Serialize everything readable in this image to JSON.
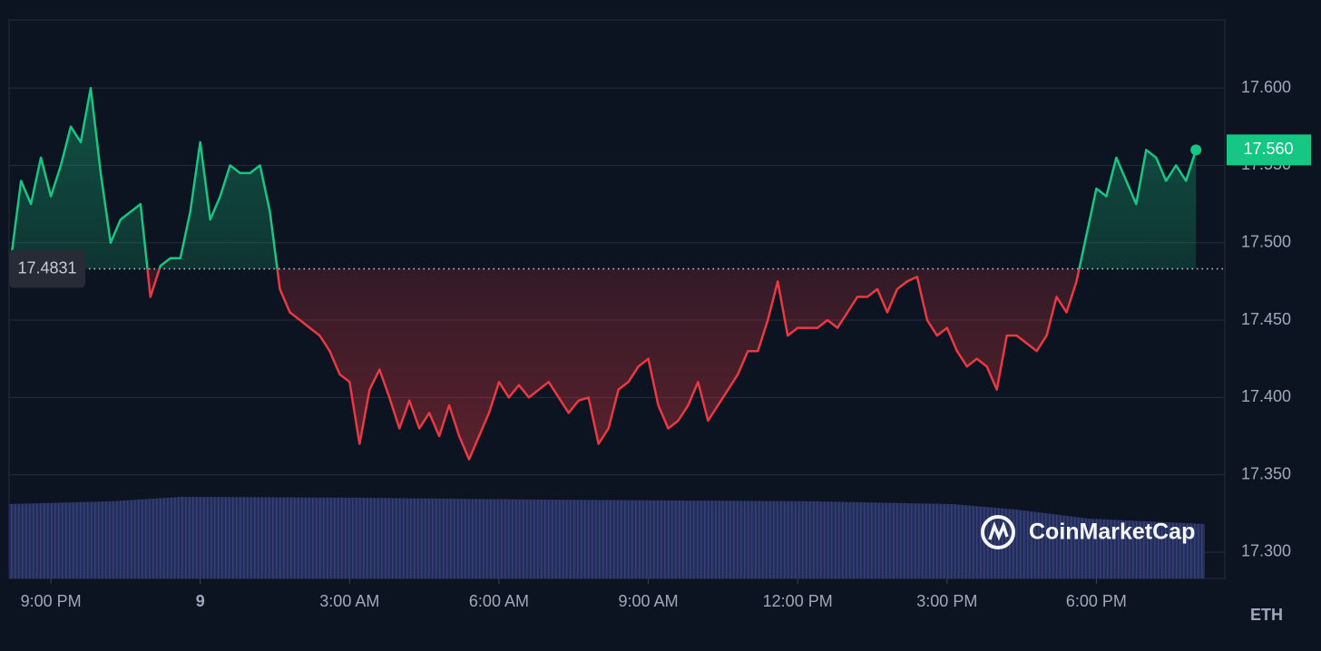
{
  "chart_data": {
    "type": "line",
    "x": [
      -0.8,
      -0.6,
      -0.4,
      -0.2,
      0,
      0.2,
      0.4,
      0.6,
      0.8,
      1,
      1.2,
      1.4,
      1.6,
      1.8,
      2,
      2.2,
      2.4,
      2.6,
      2.8,
      3,
      3.2,
      3.4,
      3.6,
      3.8,
      4,
      4.2,
      4.4,
      4.6,
      4.8,
      5,
      5.2,
      5.4,
      5.6,
      5.8,
      6,
      6.2,
      6.4,
      6.6,
      6.8,
      7,
      7.2,
      7.4,
      7.6,
      7.8,
      8,
      8.2,
      8.4,
      8.6,
      8.8,
      9,
      9.2,
      9.4,
      9.6,
      9.8,
      10,
      10.2,
      10.4,
      10.6,
      10.8,
      11,
      11.2,
      11.4,
      11.6,
      11.8,
      12,
      12.2,
      12.4,
      12.6,
      12.8,
      13,
      13.2,
      13.4,
      13.6,
      13.8,
      14,
      14.2,
      14.4,
      14.6,
      14.8,
      15,
      15.2,
      15.4,
      15.6,
      15.8,
      16,
      16.2,
      16.4,
      16.6,
      16.8,
      17,
      17.2,
      17.4,
      17.6,
      17.8,
      18,
      18.2,
      18.4,
      18.6,
      18.8,
      19,
      19.2,
      19.4,
      19.6,
      19.8,
      20,
      20.2,
      20.4,
      20.6,
      20.8,
      21,
      21.2,
      21.4,
      21.6,
      21.8,
      22,
      22.2,
      22.4,
      22.6,
      22.8,
      23
    ],
    "values": [
      17.49,
      17.54,
      17.525,
      17.555,
      17.53,
      17.55,
      17.575,
      17.565,
      17.6,
      17.545,
      17.5,
      17.515,
      17.52,
      17.525,
      17.465,
      17.485,
      17.49,
      17.49,
      17.52,
      17.565,
      17.515,
      17.53,
      17.55,
      17.545,
      17.545,
      17.55,
      17.52,
      17.47,
      17.455,
      17.45,
      17.445,
      17.44,
      17.43,
      17.415,
      17.41,
      17.37,
      17.405,
      17.418,
      17.4,
      17.38,
      17.398,
      17.38,
      17.39,
      17.375,
      17.395,
      17.375,
      17.36,
      17.375,
      17.39,
      17.41,
      17.4,
      17.408,
      17.4,
      17.405,
      17.41,
      17.4,
      17.39,
      17.398,
      17.4,
      17.37,
      17.38,
      17.405,
      17.41,
      17.42,
      17.425,
      17.395,
      17.38,
      17.385,
      17.395,
      17.41,
      17.385,
      17.395,
      17.405,
      17.415,
      17.43,
      17.43,
      17.45,
      17.475,
      17.44,
      17.445,
      17.445,
      17.445,
      17.45,
      17.445,
      17.455,
      17.465,
      17.465,
      17.47,
      17.455,
      17.47,
      17.475,
      17.478,
      17.45,
      17.44,
      17.445,
      17.43,
      17.42,
      17.425,
      17.42,
      17.405,
      17.44,
      17.44,
      17.435,
      17.43,
      17.44,
      17.465,
      17.455,
      17.475,
      17.505,
      17.535,
      17.53,
      17.555,
      17.54,
      17.525,
      17.56,
      17.555,
      17.54,
      17.55,
      17.54,
      17.56
    ],
    "up_color": "#16c784",
    "down_color": "#ea3943",
    "xlim": [
      -0.84,
      23.58
    ],
    "xticks": [
      {
        "value": 0,
        "label": "9:00 PM"
      },
      {
        "value": 3,
        "label": "9"
      },
      {
        "value": 6,
        "label": "3:00 AM"
      },
      {
        "value": 9,
        "label": "6:00 AM"
      },
      {
        "value": 12,
        "label": "9:00 AM"
      },
      {
        "value": 15,
        "label": "12:00 PM"
      },
      {
        "value": 18,
        "label": "3:00 PM"
      },
      {
        "value": 21,
        "label": "6:00 PM"
      }
    ],
    "ylim": [
      17.283,
      17.644
    ],
    "yticks": [
      {
        "value": 17.3,
        "label": "17.300"
      },
      {
        "value": 17.35,
        "label": "17.350"
      },
      {
        "value": 17.4,
        "label": "17.400"
      },
      {
        "value": 17.45,
        "label": "17.450"
      },
      {
        "value": 17.5,
        "label": "17.500"
      },
      {
        "value": 17.55,
        "label": "17.550"
      },
      {
        "value": 17.6,
        "label": "17.600"
      }
    ],
    "grid": true,
    "reference_value": 17.4831,
    "last_price": {
      "value": 17.56,
      "label": "17.560"
    },
    "currency": "ETH",
    "watermark": "CoinMarketCap"
  }
}
